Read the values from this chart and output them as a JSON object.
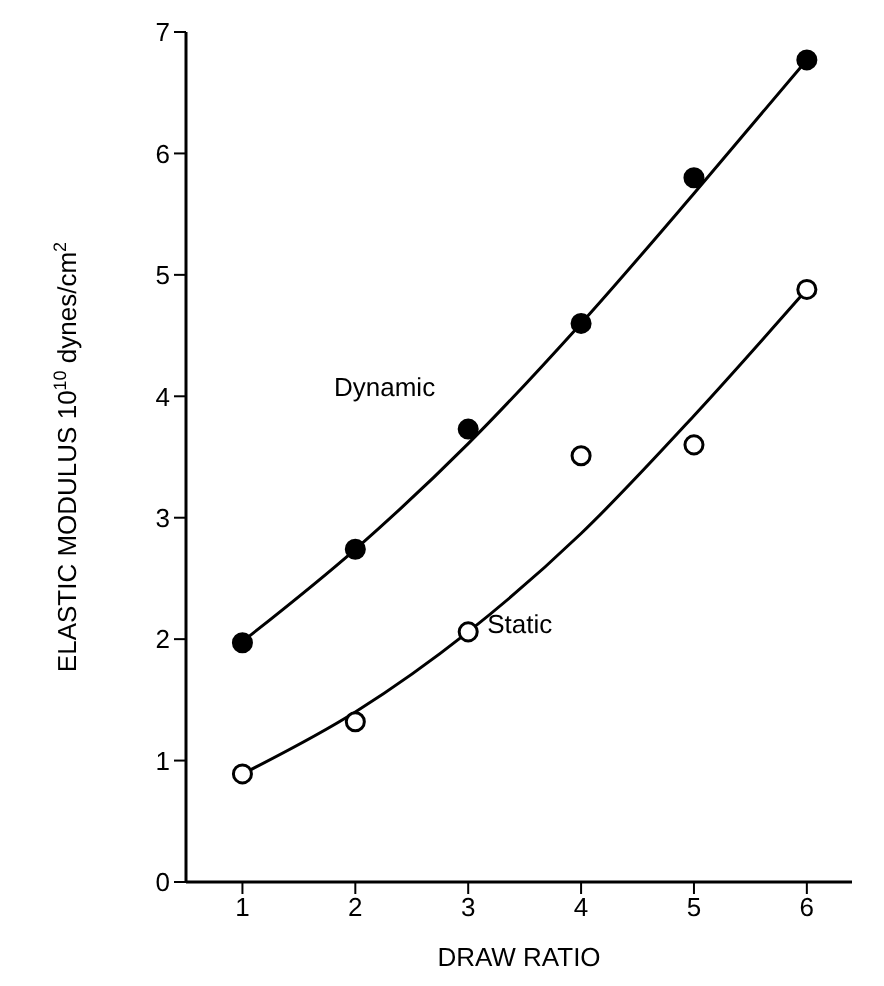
{
  "chart_data": {
    "type": "scatter",
    "xlabel": "DRAW RATIO",
    "ylabel": "ELASTIC MODULUS  10$^{10}$ dynes/cm$^{2}$",
    "xlim": [
      0.5,
      6.4
    ],
    "xticks": [
      1,
      2,
      3,
      4,
      5,
      6
    ],
    "ylim": [
      0,
      7
    ],
    "yticks": [
      0,
      1,
      2,
      3,
      4,
      5,
      6,
      7
    ],
    "grid": false,
    "legend": false,
    "series": [
      {
        "name": "Dynamic",
        "marker": "circle",
        "color": "#000000",
        "x": [
          1,
          2,
          3,
          4,
          5,
          6
        ],
        "values": [
          1.97,
          2.74,
          3.73,
          4.6,
          5.8,
          6.77
        ]
      },
      {
        "name": "Static",
        "marker": "circle",
        "color": "#ffffff",
        "x": [
          1,
          2,
          3,
          4,
          5,
          6
        ],
        "values": [
          0.89,
          1.32,
          2.06,
          3.51,
          3.6,
          4.88
        ]
      },
      {
        "type": "line",
        "marker": "none",
        "color": "#000000",
        "line_style": "solid",
        "x": [
          1,
          2,
          3,
          4,
          5,
          6
        ],
        "values": [
          1.98,
          2.74,
          3.61,
          4.6,
          5.67,
          6.77
        ]
      },
      {
        "type": "line",
        "marker": "none",
        "color": "#000000",
        "line_style": "solid",
        "x": [
          1,
          2,
          3,
          4,
          5,
          6
        ],
        "values": [
          0.89,
          1.4,
          2.06,
          2.87,
          3.84,
          4.88
        ]
      }
    ]
  }
}
